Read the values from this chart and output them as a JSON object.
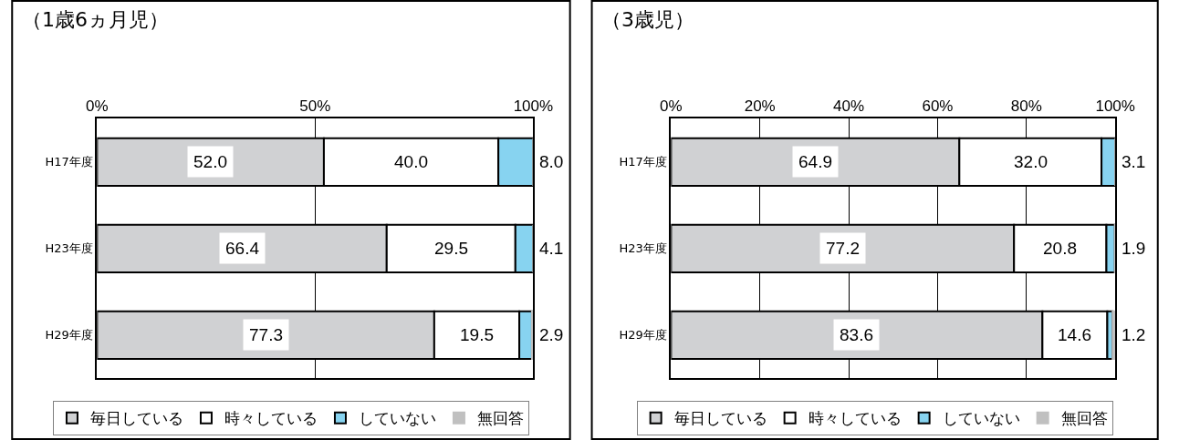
{
  "chart_data": [
    {
      "type": "bar",
      "title": "（1歳6ヵ月児）",
      "orientation": "horizontal",
      "stacked": true,
      "categories": [
        "H17年度",
        "H23年度",
        "H29年度"
      ],
      "xlim": [
        0,
        100
      ],
      "xticks": [
        {
          "value": 0,
          "label": "0%"
        },
        {
          "value": 50,
          "label": "50%"
        },
        {
          "value": 100,
          "label": "100%"
        }
      ],
      "grid": "x",
      "legend": "bottom",
      "series": [
        {
          "name": "毎日している",
          "color": "#d0d1d3",
          "values": [
            52.0,
            66.4,
            77.3
          ],
          "value_labels": [
            "52.0",
            "66.4",
            "77.3"
          ]
        },
        {
          "name": "時々している",
          "color": "#ffffff",
          "values": [
            40.0,
            29.5,
            19.5
          ],
          "value_labels": [
            "40.0",
            "29.5",
            "19.5"
          ]
        },
        {
          "name": "していない",
          "color": "#87d3f0",
          "values": [
            8.0,
            4.1,
            2.9
          ],
          "value_labels": [
            "8.0",
            "4.1",
            "2.9"
          ]
        },
        {
          "name": "無回答",
          "color": "#c0c0c0",
          "values": [
            0,
            0,
            0.3
          ],
          "value_labels": [
            null,
            null,
            null
          ]
        }
      ]
    },
    {
      "type": "bar",
      "title": "（3歳児）",
      "orientation": "horizontal",
      "stacked": true,
      "categories": [
        "H17年度",
        "H23年度",
        "H29年度"
      ],
      "xlim": [
        0,
        100
      ],
      "xticks": [
        {
          "value": 0,
          "label": "0%"
        },
        {
          "value": 20,
          "label": "20%"
        },
        {
          "value": 40,
          "label": "40%"
        },
        {
          "value": 60,
          "label": "60%"
        },
        {
          "value": 80,
          "label": "80%"
        },
        {
          "value": 100,
          "label": "100%"
        }
      ],
      "grid": "x",
      "legend": "bottom",
      "series": [
        {
          "name": "毎日している",
          "color": "#d0d1d3",
          "values": [
            64.9,
            77.2,
            83.6
          ],
          "value_labels": [
            "64.9",
            "77.2",
            "83.6"
          ]
        },
        {
          "name": "時々している",
          "color": "#ffffff",
          "values": [
            32.0,
            20.8,
            14.6
          ],
          "value_labels": [
            "32.0",
            "20.8",
            "14.6"
          ]
        },
        {
          "name": "していない",
          "color": "#87d3f0",
          "values": [
            3.1,
            1.9,
            1.2
          ],
          "value_labels": [
            "3.1",
            "1.9",
            "1.2"
          ]
        },
        {
          "name": "無回答",
          "color": "#c0c0c0",
          "values": [
            0,
            0.1,
            0.6
          ],
          "value_labels": [
            null,
            null,
            null
          ]
        }
      ]
    }
  ]
}
